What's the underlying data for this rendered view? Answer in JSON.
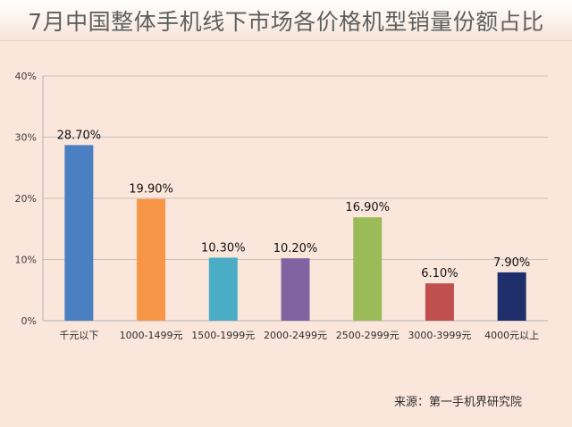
{
  "title": "7月中国整体手机线下市场各价格机型销量份额占比",
  "source": "来源：第一手机界研究院",
  "chart_data": {
    "type": "bar",
    "categories": [
      "千元以下",
      "1000-1499元",
      "1500-1999元",
      "2000-2499元",
      "2500-2999元",
      "3000-3999元",
      "4000元以上"
    ],
    "values": [
      28.7,
      19.9,
      10.3,
      10.2,
      16.9,
      6.1,
      7.9
    ],
    "data_labels": [
      "28.70%",
      "19.90%",
      "10.30%",
      "10.20%",
      "16.90%",
      "6.10%",
      "7.90%"
    ],
    "colors": [
      "#4a7fc1",
      "#f79646",
      "#4bacc6",
      "#8064a2",
      "#9bbb59",
      "#c0504d",
      "#1f2f6b"
    ],
    "ylim": [
      0,
      40
    ],
    "yticks": [
      0,
      10,
      20,
      30,
      40
    ],
    "ytick_labels": [
      "0%",
      "10%",
      "20%",
      "30%",
      "40%"
    ],
    "grid": true,
    "legend": false
  }
}
